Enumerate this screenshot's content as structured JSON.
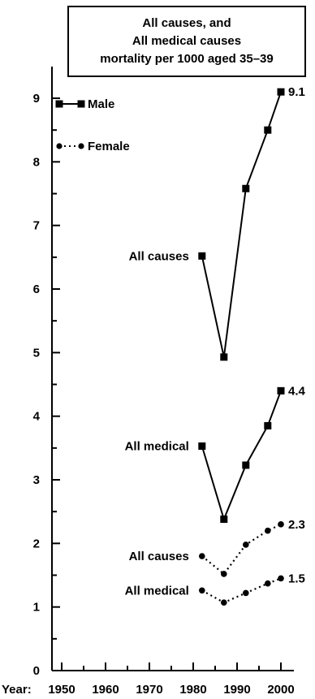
{
  "chart_data": {
    "type": "line",
    "title_lines": [
      "All causes, and",
      "All medical causes",
      "mortality per 1000 aged 35–39"
    ],
    "x_prefix": "Year:",
    "x_ticks": [
      1950,
      1960,
      1970,
      1980,
      1990,
      2000
    ],
    "xlim": [
      1948,
      2002
    ],
    "ylim": [
      0,
      9.4
    ],
    "y_ticks": [
      0,
      1,
      2,
      3,
      4,
      5,
      6,
      7,
      8,
      9
    ],
    "legend": [
      {
        "name": "Male",
        "style": "solid",
        "marker": "square"
      },
      {
        "name": "Female",
        "style": "dotted",
        "marker": "circle"
      }
    ],
    "series": [
      {
        "label": "All causes",
        "sex": "Male",
        "style": "solid",
        "marker": "square",
        "x": [
          1982,
          1987,
          1992,
          1997,
          2000
        ],
        "y": [
          6.52,
          4.93,
          7.58,
          8.5,
          9.1
        ],
        "end_label": "9.1"
      },
      {
        "label": "All medical",
        "sex": "Male",
        "style": "solid",
        "marker": "square",
        "x": [
          1982,
          1987,
          1992,
          1997,
          2000
        ],
        "y": [
          3.53,
          2.38,
          3.23,
          3.85,
          4.4
        ],
        "end_label": "4.4"
      },
      {
        "label": "All causes",
        "sex": "Female",
        "style": "dotted",
        "marker": "circle",
        "x": [
          1982,
          1987,
          1992,
          1997,
          2000
        ],
        "y": [
          1.8,
          1.52,
          1.98,
          2.2,
          2.3
        ],
        "end_label": "2.3"
      },
      {
        "label": "All medical",
        "sex": "Female",
        "style": "dotted",
        "marker": "circle",
        "x": [
          1982,
          1987,
          1992,
          1997,
          2000
        ],
        "y": [
          1.26,
          1.07,
          1.22,
          1.37,
          1.45
        ],
        "end_label": "1.5"
      }
    ]
  }
}
